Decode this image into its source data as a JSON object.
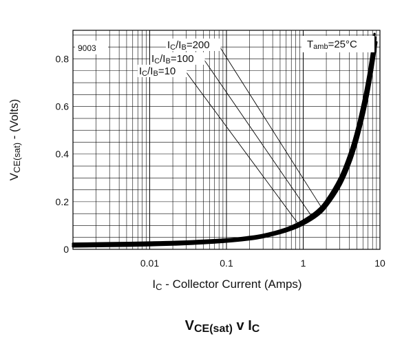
{
  "chart_data": {
    "type": "line",
    "title": "VCE(sat) v IC",
    "title_parts": {
      "a": "V",
      "b": "CE(sat)",
      "c": " v I",
      "d": "C"
    },
    "xlabel": "IC - Collector Current (Amps)",
    "xlabel_parts": {
      "a": "I",
      "b": "C",
      "c": " - Collector Current (Amps)"
    },
    "ylabel": "VCE(sat) - (Volts)",
    "ylabel_parts": {
      "a": "V",
      "b": "CE(sat)",
      "c": " - (Volts)"
    },
    "x_scale": "log",
    "y_scale": "linear",
    "xlim": [
      0.001,
      10
    ],
    "ylim": [
      0,
      0.92
    ],
    "x_ticks": [
      {
        "value": 0.01,
        "label": "0.01"
      },
      {
        "value": 0.1,
        "label": "0.1"
      },
      {
        "value": 1,
        "label": "1"
      },
      {
        "value": 10,
        "label": "10"
      }
    ],
    "y_ticks": [
      {
        "value": 0,
        "label": "0"
      },
      {
        "value": 0.2,
        "label": "0.2"
      },
      {
        "value": 0.4,
        "label": "0.4"
      },
      {
        "value": 0.6,
        "label": "0.6"
      },
      {
        "value": 0.8,
        "label": "0.8"
      }
    ],
    "grid": true,
    "chart_id": "9003",
    "condition": "Tamb=25°C",
    "condition_parts": {
      "a": "T",
      "b": "amb",
      "c": "=25°C"
    },
    "series": [
      {
        "name": "IC/IB=10",
        "name_parts": {
          "a": "I",
          "b": "C",
          "c": "/I",
          "d": "B",
          "e": "=10"
        },
        "x": [
          0.001,
          0.003,
          0.01,
          0.03,
          0.1,
          0.2,
          0.3,
          0.5,
          0.7,
          1,
          1.5,
          2,
          3,
          4,
          5,
          6,
          7,
          8,
          9
        ],
        "y": [
          0.012,
          0.014,
          0.017,
          0.022,
          0.032,
          0.042,
          0.051,
          0.068,
          0.083,
          0.105,
          0.14,
          0.18,
          0.265,
          0.355,
          0.45,
          0.55,
          0.65,
          0.76,
          0.87
        ]
      },
      {
        "name": "IC/IB=100",
        "name_parts": {
          "a": "I",
          "b": "C",
          "c": "/I",
          "d": "B",
          "e": "=100"
        },
        "x": [
          0.001,
          0.003,
          0.01,
          0.03,
          0.1,
          0.2,
          0.3,
          0.5,
          0.7,
          1,
          1.5,
          2,
          3,
          4,
          5,
          6,
          7,
          8,
          8.7
        ],
        "y": [
          0.018,
          0.02,
          0.023,
          0.027,
          0.036,
          0.046,
          0.055,
          0.073,
          0.089,
          0.113,
          0.15,
          0.192,
          0.282,
          0.378,
          0.477,
          0.58,
          0.685,
          0.8,
          0.89
        ]
      },
      {
        "name": "IC/IB=200",
        "name_parts": {
          "a": "I",
          "b": "C",
          "c": "/I",
          "d": "B",
          "e": "=200"
        },
        "x": [
          0.001,
          0.003,
          0.01,
          0.03,
          0.1,
          0.2,
          0.3,
          0.5,
          0.7,
          1,
          1.5,
          2,
          3,
          4,
          5,
          6,
          7,
          8,
          8.5
        ],
        "y": [
          0.024,
          0.026,
          0.029,
          0.033,
          0.042,
          0.052,
          0.061,
          0.079,
          0.096,
          0.121,
          0.16,
          0.205,
          0.3,
          0.4,
          0.505,
          0.615,
          0.725,
          0.845,
          0.905
        ]
      }
    ]
  }
}
